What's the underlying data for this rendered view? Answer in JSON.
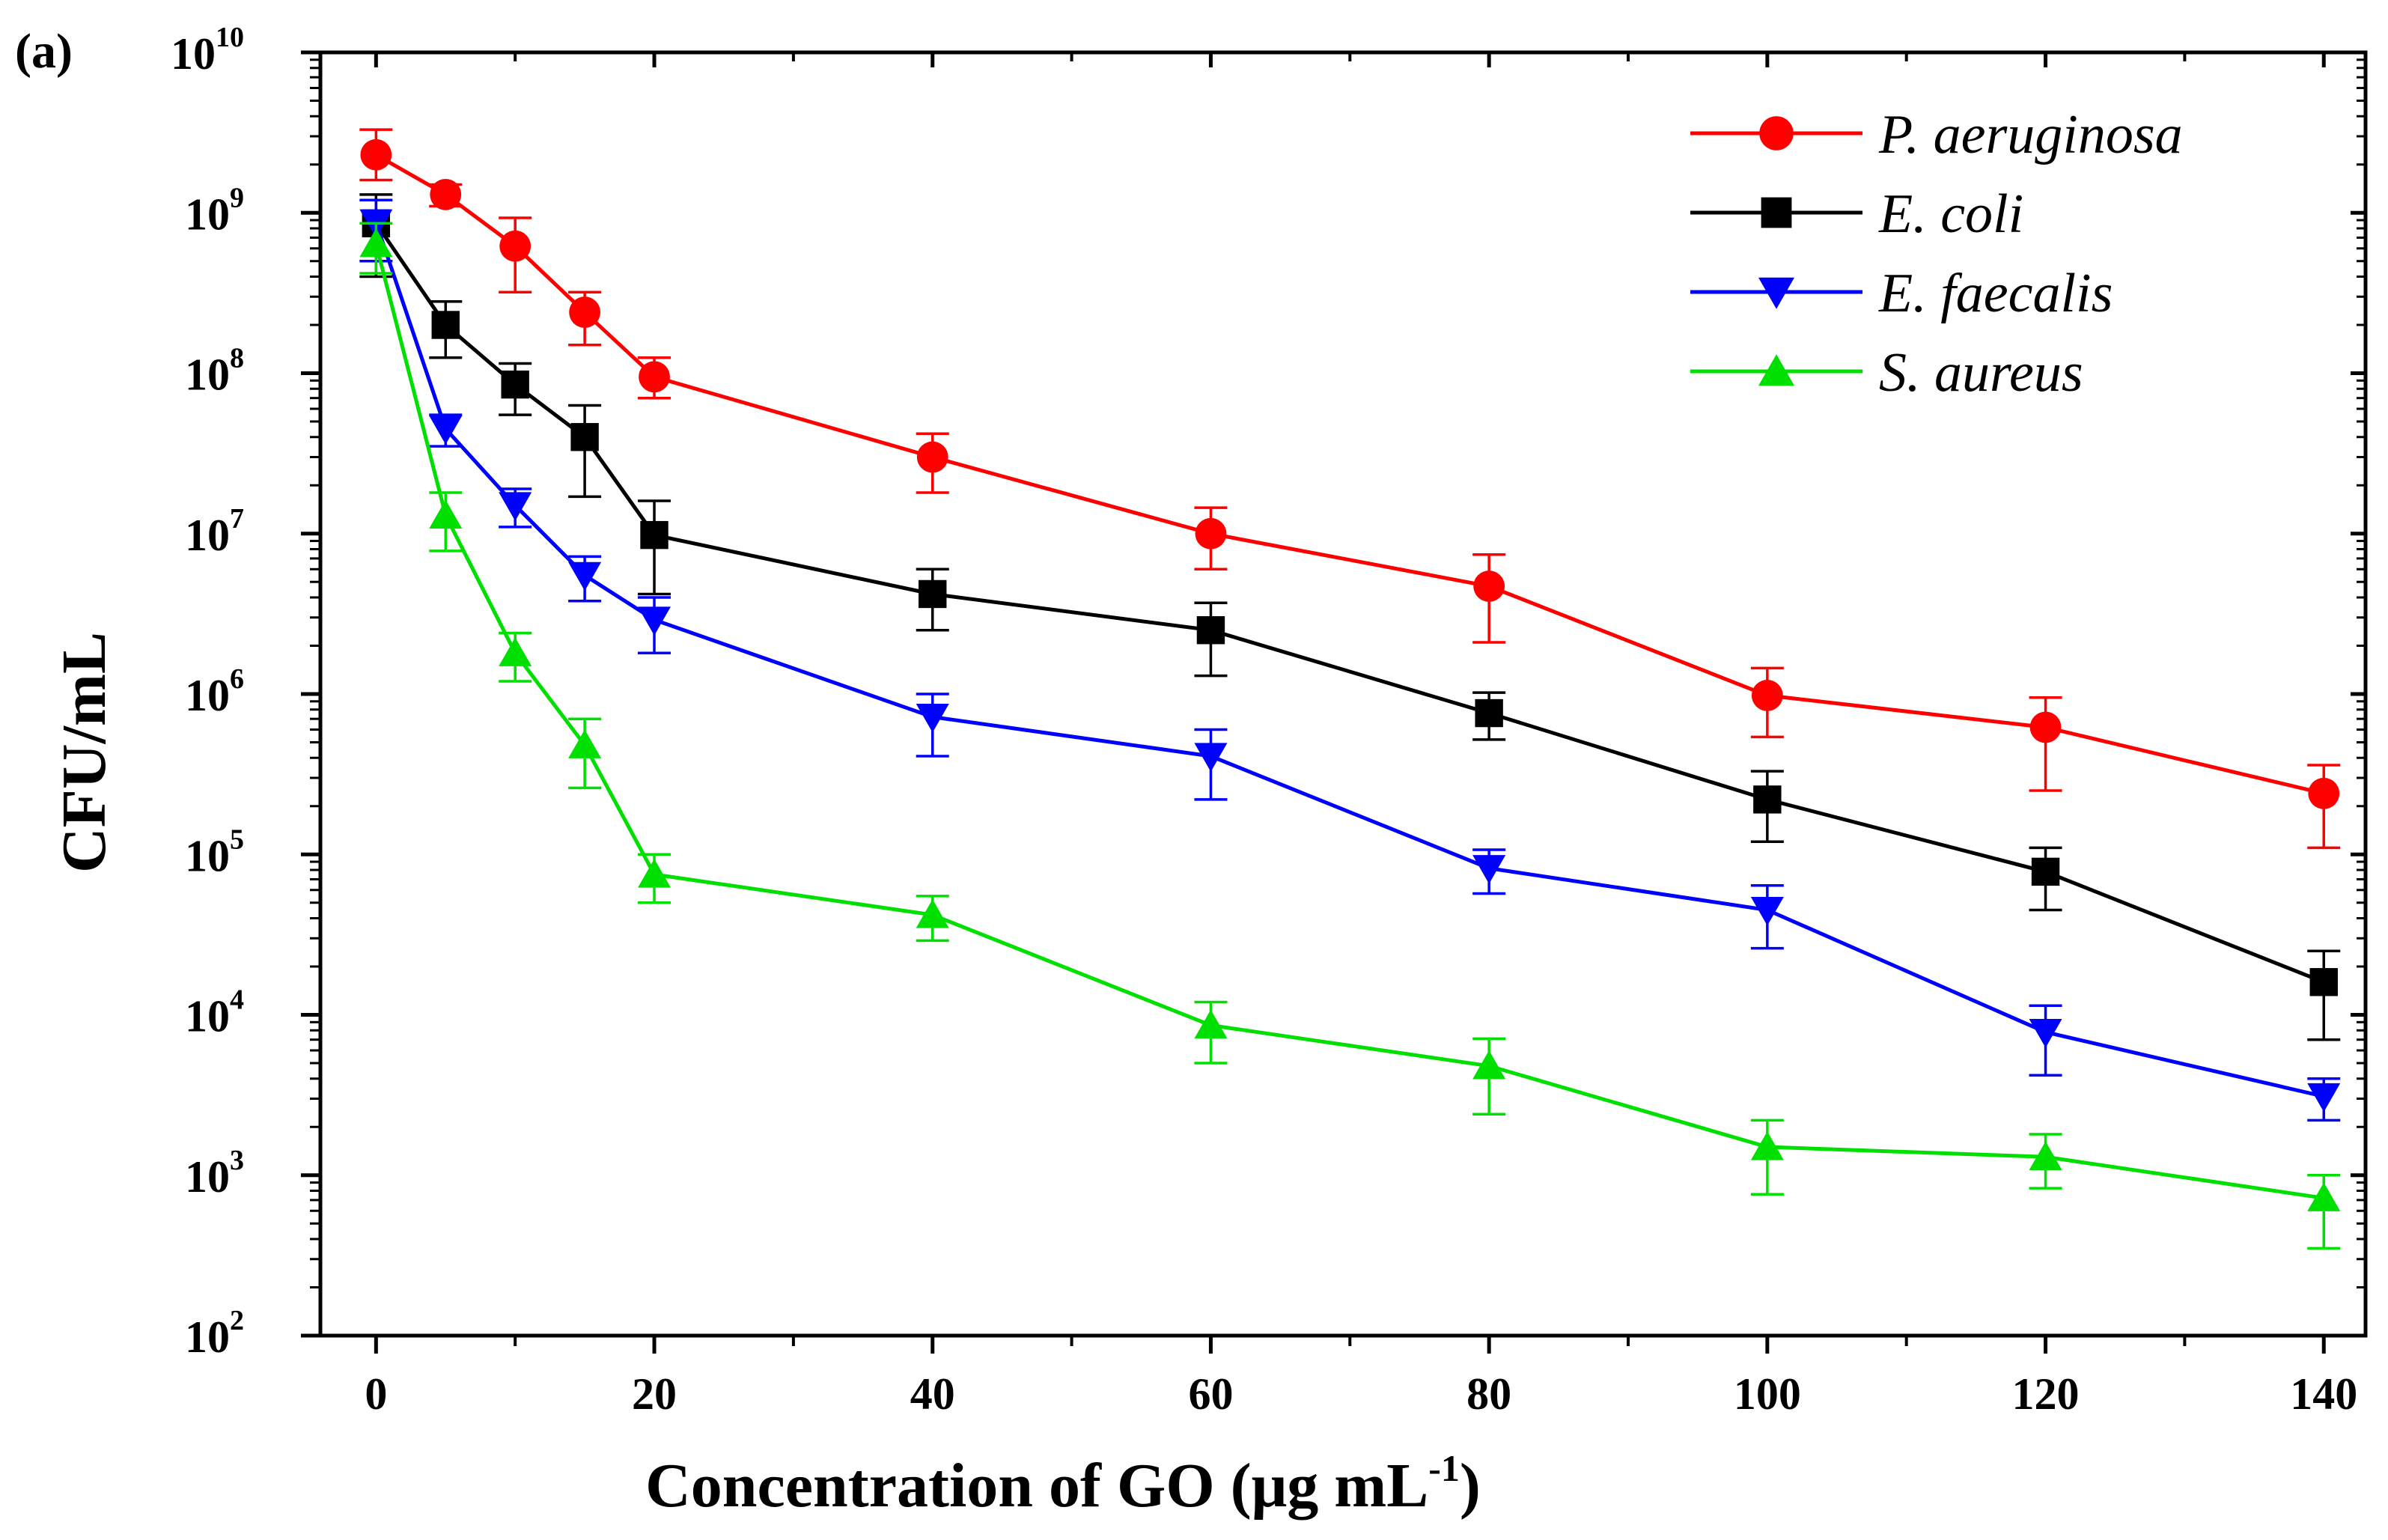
{
  "chart_data": {
    "type": "line",
    "panel_label": "(a)",
    "xlabel_main": "Concentration of GO (μg mL",
    "xlabel_sup": "-1",
    "xlabel_close": ")",
    "ylabel": "CFU/mL",
    "xlim": [
      -4,
      143
    ],
    "ylim": [
      100,
      10000000000
    ],
    "yscale": "log",
    "x_ticks": [
      0,
      20,
      40,
      60,
      80,
      100,
      120,
      140
    ],
    "x_tick_labels": [
      "0",
      "20",
      "40",
      "60",
      "80",
      "100",
      "120",
      "140"
    ],
    "y_ticks": [
      2,
      3,
      4,
      5,
      6,
      7,
      8,
      9,
      10
    ],
    "y_tick_base": "10",
    "y_tick_exponents": [
      "2",
      "3",
      "4",
      "5",
      "6",
      "7",
      "8",
      "9",
      "10"
    ],
    "grid": false,
    "legend_position": "top-right",
    "x": [
      0,
      5,
      10,
      15,
      20,
      40,
      60,
      80,
      100,
      120,
      140
    ],
    "series": [
      {
        "name": "P. aeruginosa",
        "color": "#ff0000",
        "marker": "circle",
        "values": [
          2300000000,
          1300000000,
          620000000,
          240000000,
          95000000,
          30000000,
          10000000,
          4700000,
          980000,
          620000,
          240000
        ],
        "err_low": [
          1600000000,
          1100000000,
          320000000,
          150000000,
          70000000,
          18000000,
          6000000,
          2100000,
          540000,
          250000,
          110000
        ],
        "err_high": [
          3300000000,
          1500000000,
          930000000,
          320000000,
          125000000,
          42000000,
          14500000,
          7400000,
          1450000,
          950000,
          360000
        ]
      },
      {
        "name": "E. coli",
        "color": "#000000",
        "marker": "square",
        "values": [
          860000000,
          200000000,
          85000000,
          40000000,
          9800000,
          4200000,
          2500000,
          760000,
          220000,
          78000,
          16000
        ],
        "err_low": [
          400000000,
          125000000,
          55000000,
          17000000,
          4200000,
          2500000,
          1300000,
          520000,
          120000,
          45000,
          7000
        ],
        "err_high": [
          1300000000,
          280000000,
          115000000,
          63000000,
          16000000,
          6000000,
          3700000,
          1020000,
          330000,
          110000,
          25000
        ]
      },
      {
        "name": "E. faecalis",
        "color": "#0000ff",
        "marker": "triangle-down",
        "values": [
          870000000,
          45000000,
          15000000,
          5500000,
          2900000,
          720000,
          410000,
          82000,
          45000,
          7800,
          3100
        ],
        "err_low": [
          500000000,
          35000000,
          11000000,
          3800000,
          1800000,
          410000,
          220000,
          57000,
          26000,
          4200,
          2200
        ],
        "err_high": [
          1200000000,
          55000000,
          19000000,
          7200000,
          4000000,
          1000000,
          600000,
          107000,
          64000,
          11400,
          4000
        ]
      },
      {
        "name": "S. aureus",
        "color": "#00e000",
        "marker": "triangle-up",
        "values": [
          640000000,
          13000000,
          1800000,
          480000,
          75000,
          42000,
          8600,
          4800,
          1500,
          1300,
          720
        ],
        "err_low": [
          420000000,
          7800000,
          1200000,
          260000,
          50000,
          29000,
          5000,
          2400,
          760,
          830,
          350
        ],
        "err_high": [
          860000000,
          18000000,
          2400000,
          700000,
          100000,
          55000,
          12000,
          7100,
          2200,
          1800,
          1000
        ]
      }
    ]
  }
}
